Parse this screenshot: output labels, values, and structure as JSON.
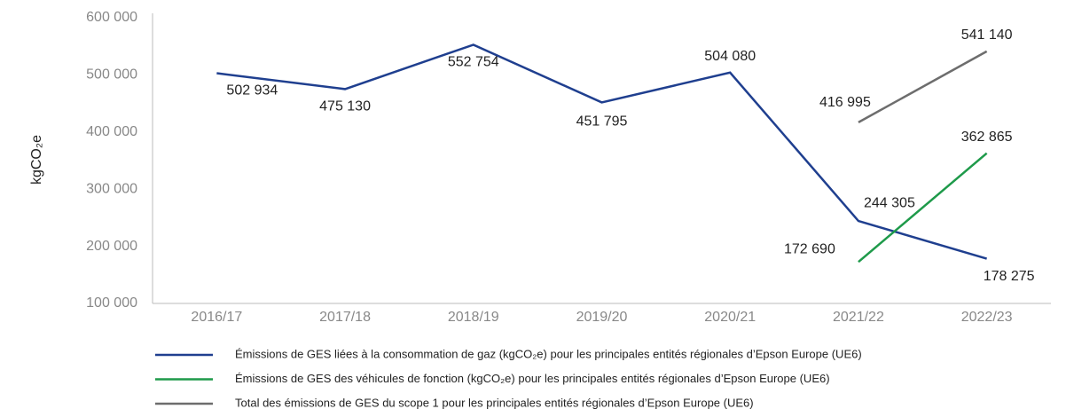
{
  "chart_data": {
    "type": "line",
    "y_label": "kgCO₂e",
    "categories": [
      "2016/17",
      "2017/18",
      "2018/19",
      "2019/20",
      "2020/21",
      "2021/22",
      "2022/23"
    ],
    "series": [
      {
        "name": "Émissions de GES liées à la consommation de gaz (kgCO₂e) pour les principales entités régionales d’Epson Europe (UE6)",
        "color": "#1f3f8f",
        "values": [
          502934,
          475130,
          552754,
          451795,
          504080,
          244305,
          178275
        ],
        "value_labels": [
          "502 934",
          "475 130",
          "552 754",
          "451 795",
          "504 080",
          "244 305",
          "178 275"
        ]
      },
      {
        "name": "Émissions de GES des véhicules de fonction (kgCO₂e) pour les principales entités régionales d’Epson Europe (UE6)",
        "color": "#1e9a4a",
        "values": [
          null,
          null,
          null,
          null,
          null,
          172690,
          362865
        ],
        "value_labels": [
          null,
          null,
          null,
          null,
          null,
          "172 690",
          "362 865"
        ]
      },
      {
        "name": "Total des émissions de GES du scope 1 pour les principales entités régionales d’Epson Europe (UE6)",
        "color": "#6d6d6d",
        "values": [
          null,
          null,
          null,
          null,
          null,
          416995,
          541140
        ],
        "value_labels": [
          null,
          null,
          null,
          null,
          null,
          "416 995",
          "541 140"
        ]
      }
    ],
    "ylim": [
      100000,
      600000
    ],
    "yticks": [
      {
        "value": 100000,
        "label": "100 000"
      },
      {
        "value": 200000,
        "label": "200 000"
      },
      {
        "value": 300000,
        "label": "300 000"
      },
      {
        "value": 400000,
        "label": "400 000"
      },
      {
        "value": 500000,
        "label": "500 000"
      },
      {
        "value": 600000,
        "label": "600 000"
      }
    ],
    "grid": false
  }
}
